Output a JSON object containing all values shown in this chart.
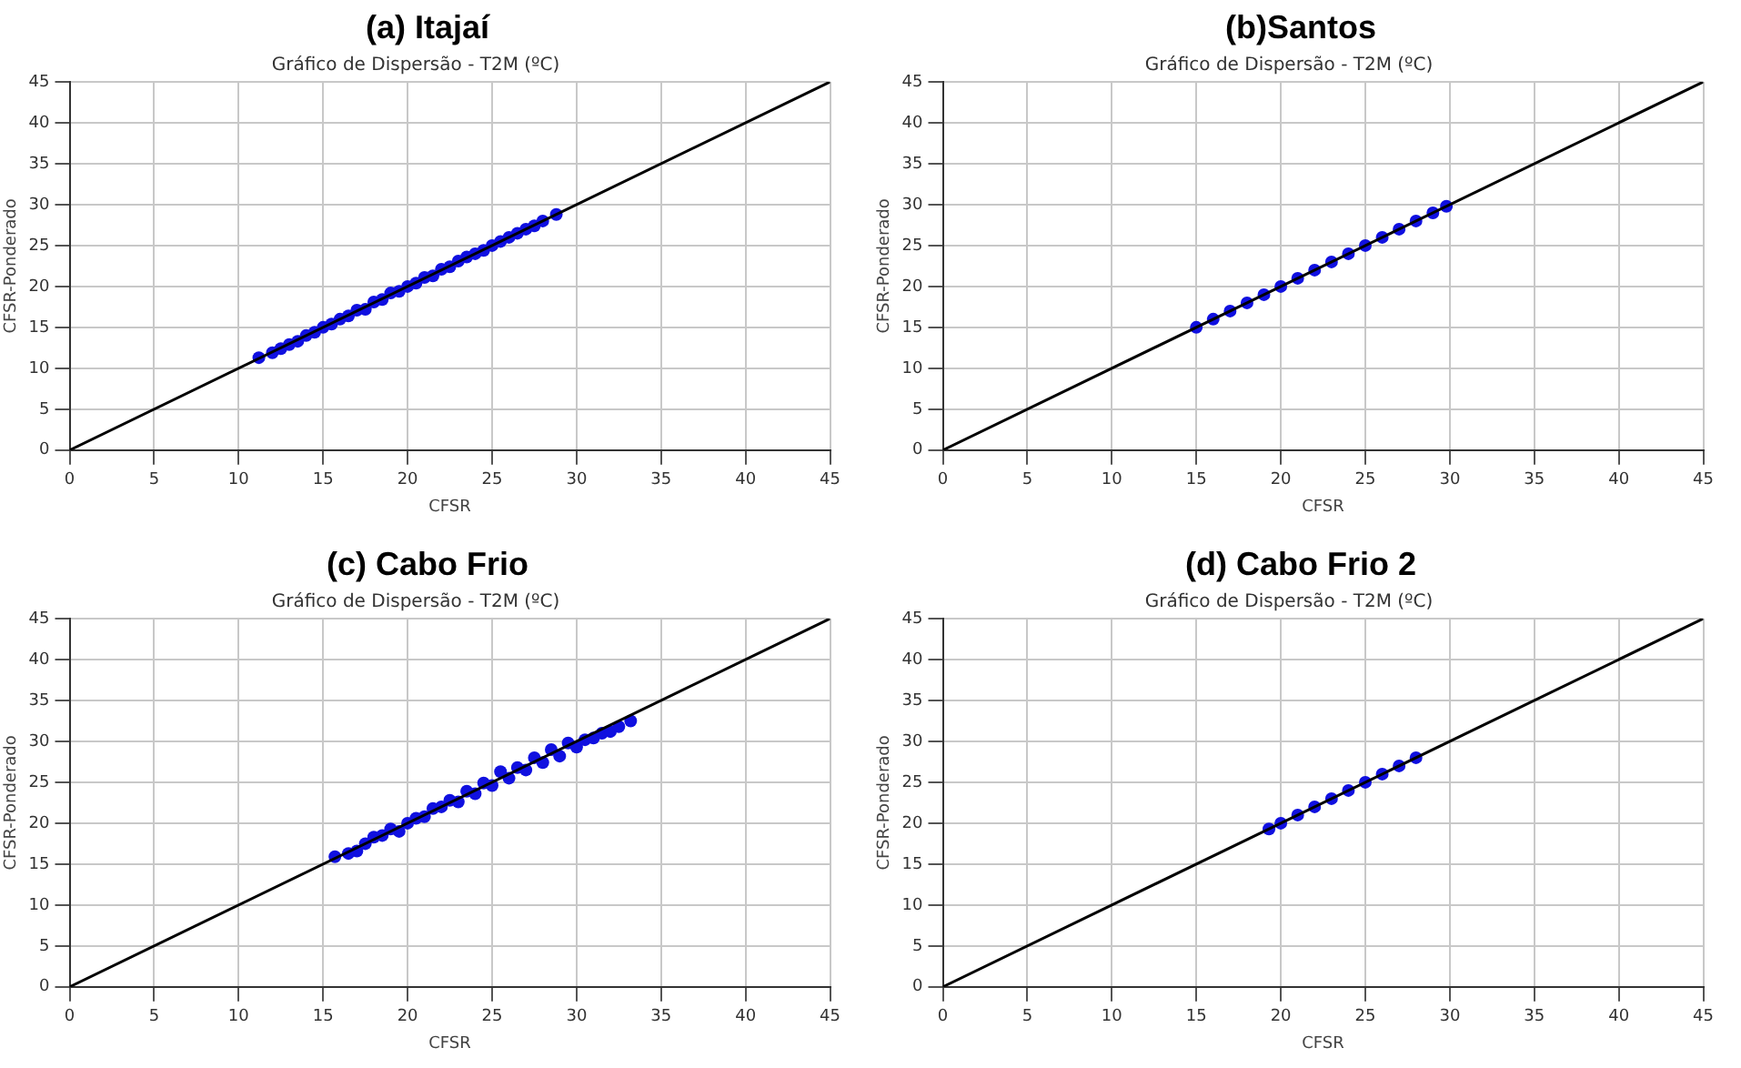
{
  "chart_data": [
    {
      "type": "scatter",
      "title": "(a) Itajaí",
      "subtitle": "Gráfico de Dispersão - T2M (ºC)",
      "xlabel": "CFSR",
      "ylabel": "CFSR-Ponderado",
      "xlim": [
        0,
        45
      ],
      "ylim": [
        0,
        45
      ],
      "xticks": [
        0,
        5,
        10,
        15,
        20,
        25,
        30,
        35,
        40,
        45
      ],
      "yticks": [
        0,
        5,
        10,
        15,
        20,
        25,
        30,
        35,
        40,
        45
      ],
      "grid": true,
      "legend": false,
      "series": [
        {
          "marker": "circle",
          "color": "#1010e0",
          "x": [
            11.2,
            12,
            12.5,
            13,
            13.5,
            14,
            14.5,
            15,
            15.5,
            16,
            16.5,
            17,
            17.5,
            18,
            18.5,
            19,
            19.5,
            20,
            20.5,
            21,
            21.5,
            22,
            22.5,
            23,
            23.5,
            24,
            24.5,
            25,
            25.5,
            26,
            26.5,
            27,
            27.5,
            28,
            28.8
          ],
          "values": [
            11.3,
            11.9,
            12.4,
            12.9,
            13.3,
            14,
            14.4,
            15,
            15.4,
            16,
            16.4,
            17.1,
            17.2,
            18.1,
            18.4,
            19.2,
            19.4,
            20,
            20.4,
            21.1,
            21.3,
            22.1,
            22.4,
            23.1,
            23.6,
            24,
            24.4,
            25,
            25.5,
            26,
            26.5,
            27,
            27.4,
            28,
            28.8
          ]
        },
        {
          "type": "line",
          "color": "#000000",
          "x": [
            0,
            45
          ],
          "values": [
            0,
            45
          ]
        }
      ]
    },
    {
      "type": "scatter",
      "title": "(b)Santos",
      "subtitle": "Gráfico de Dispersão - T2M (ºC)",
      "xlabel": "CFSR",
      "ylabel": "CFSR-Ponderado",
      "xlim": [
        0,
        45
      ],
      "ylim": [
        0,
        45
      ],
      "xticks": [
        0,
        5,
        10,
        15,
        20,
        25,
        30,
        35,
        40,
        45
      ],
      "yticks": [
        0,
        5,
        10,
        15,
        20,
        25,
        30,
        35,
        40,
        45
      ],
      "grid": true,
      "legend": false,
      "series": [
        {
          "marker": "circle",
          "color": "#1010e0",
          "x": [
            15,
            16,
            17,
            18,
            19,
            20,
            21,
            22,
            23,
            24,
            25,
            26,
            27,
            28,
            29,
            29.8
          ],
          "values": [
            15,
            16,
            17,
            18,
            19,
            20,
            21,
            22,
            23,
            24,
            25,
            26,
            27,
            28,
            29,
            29.8
          ]
        },
        {
          "type": "line",
          "color": "#000000",
          "x": [
            0,
            45
          ],
          "values": [
            0,
            45
          ]
        }
      ]
    },
    {
      "type": "scatter",
      "title": "(c) Cabo Frio",
      "subtitle": "Gráfico de Dispersão - T2M (ºC)",
      "xlabel": "CFSR",
      "ylabel": "CFSR-Ponderado",
      "xlim": [
        0,
        45
      ],
      "ylim": [
        0,
        45
      ],
      "xticks": [
        0,
        5,
        10,
        15,
        20,
        25,
        30,
        35,
        40,
        45
      ],
      "yticks": [
        0,
        5,
        10,
        15,
        20,
        25,
        30,
        35,
        40,
        45
      ],
      "grid": true,
      "legend": false,
      "series": [
        {
          "marker": "circle",
          "color": "#1010e0",
          "x": [
            15.7,
            16.5,
            17,
            17.5,
            18,
            18.5,
            19,
            19.5,
            20,
            20.5,
            21,
            21.5,
            22,
            22.5,
            23,
            23.5,
            24,
            24.5,
            25,
            25.5,
            26,
            26.5,
            27,
            27.5,
            28,
            28.5,
            29,
            29.5,
            30,
            30.5,
            31,
            31.5,
            32,
            32.5,
            33.2
          ],
          "values": [
            15.9,
            16.3,
            16.6,
            17.5,
            18.3,
            18.5,
            19.3,
            19,
            20,
            20.6,
            20.8,
            21.8,
            22,
            22.8,
            22.6,
            23.9,
            23.6,
            24.9,
            24.6,
            26.3,
            25.5,
            26.8,
            26.5,
            28,
            27.4,
            29,
            28.2,
            29.8,
            29.3,
            30.2,
            30.4,
            31,
            31.2,
            31.8,
            32.5
          ]
        },
        {
          "type": "line",
          "color": "#000000",
          "x": [
            0,
            45
          ],
          "values": [
            0,
            45
          ]
        }
      ]
    },
    {
      "type": "scatter",
      "title": "(d) Cabo Frio 2",
      "subtitle": "Gráfico de Dispersão - T2M (ºC)",
      "xlabel": "CFSR",
      "ylabel": "CFSR-Ponderado",
      "xlim": [
        0,
        45
      ],
      "ylim": [
        0,
        45
      ],
      "xticks": [
        0,
        5,
        10,
        15,
        20,
        25,
        30,
        35,
        40,
        45
      ],
      "yticks": [
        0,
        5,
        10,
        15,
        20,
        25,
        30,
        35,
        40,
        45
      ],
      "grid": true,
      "legend": false,
      "series": [
        {
          "marker": "circle",
          "color": "#1010e0",
          "x": [
            19.3,
            20,
            21,
            22,
            23,
            24,
            25,
            26,
            27,
            28
          ],
          "values": [
            19.3,
            20,
            21,
            22,
            23,
            24,
            25,
            26,
            27,
            28
          ]
        },
        {
          "type": "line",
          "color": "#000000",
          "x": [
            0,
            45
          ],
          "values": [
            0,
            45
          ]
        }
      ]
    }
  ]
}
